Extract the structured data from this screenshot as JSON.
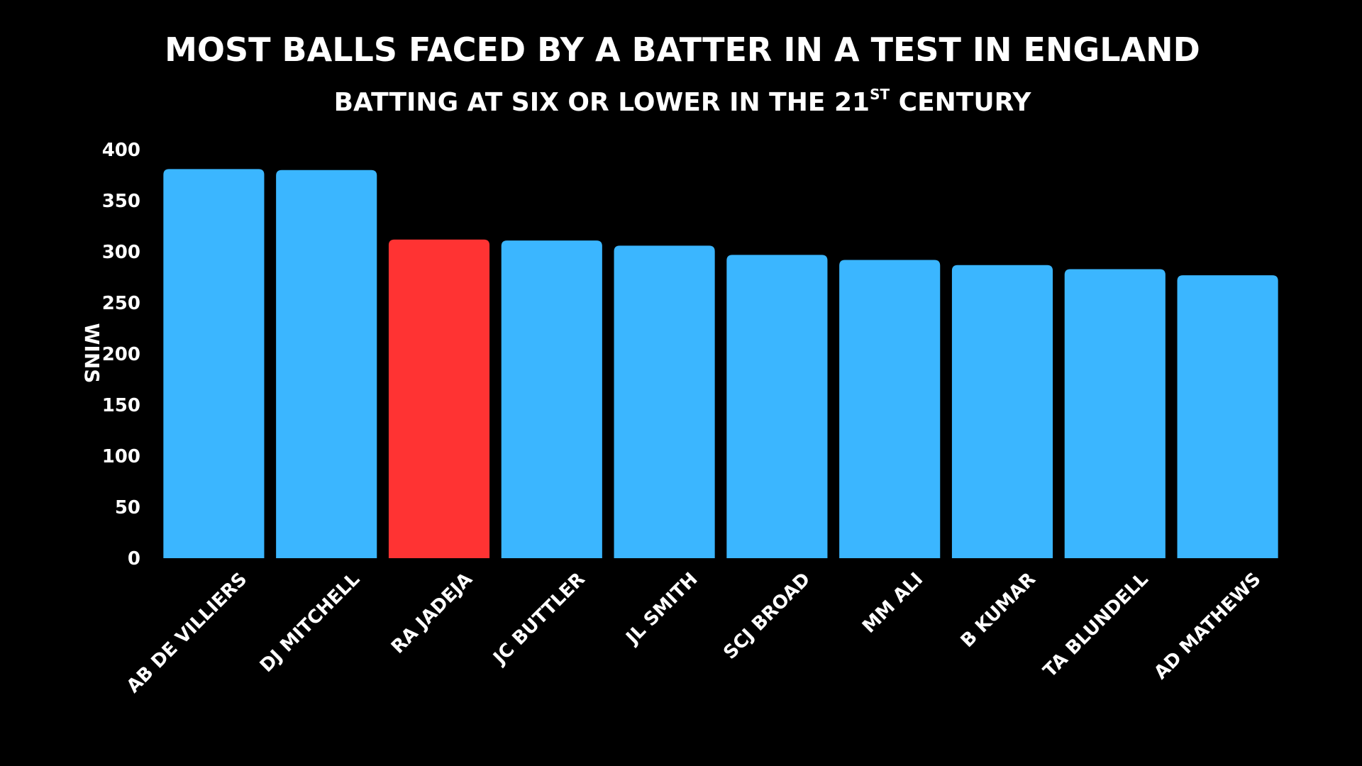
{
  "chart_data": {
    "type": "bar",
    "title": "MOST BALLS FACED BY A BATTER IN A TEST IN ENGLAND",
    "subtitle_main": "BATTING AT SIX OR LOWER IN THE 21",
    "subtitle_sup": "ST",
    "subtitle_end": " CENTURY",
    "xlabel": "",
    "ylabel": "WINS",
    "ylim": [
      0,
      400
    ],
    "yticks": [
      "0",
      "50",
      "100",
      "150",
      "200",
      "250",
      "300",
      "350",
      "400"
    ],
    "categories": [
      "AB DE VILLIERS",
      "DJ MITCHELL",
      "RA JADEJA",
      "JC BUTTLER",
      "JL SMITH",
      "SCJ BROAD",
      "MM ALI",
      "B KUMAR",
      "TA BLUNDELL",
      "AD MATHEWS"
    ],
    "values": [
      381,
      380,
      312,
      311,
      306,
      297,
      292,
      287,
      283,
      277
    ],
    "highlight_index": 2,
    "grid": false,
    "legend": "none"
  },
  "colors": {
    "background": "#000000",
    "bar": "#3bb6ff",
    "highlight": "#ff3333",
    "text": "#ffffff"
  }
}
